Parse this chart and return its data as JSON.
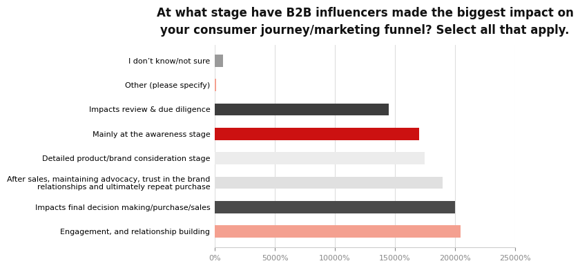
{
  "title": "At what stage have B2B influencers made the biggest impact on\nyour consumer journey/marketing funnel? Select all that apply.",
  "categories": [
    "Engagement, and relationship building",
    "Impacts final decision making/purchase/sales",
    "After sales, maintaining advocacy, trust in the brand\nrelationships and ultimately repeat purchase",
    "Detailed product/brand consideration stage",
    "Mainly at the awareness stage",
    "Impacts review & due diligence",
    "Other (please specify)",
    "I don’t know/not sure"
  ],
  "values": [
    20500,
    20000,
    19000,
    17500,
    17000,
    14500,
    100,
    700
  ],
  "colors": [
    "#f4a090",
    "#4a4a4a",
    "#e0e0e0",
    "#ececec",
    "#cc1111",
    "#3d3d3d",
    "#f4a090",
    "#9a9a9a"
  ],
  "xlim": [
    0,
    25000
  ],
  "xtick_values": [
    0,
    5000,
    10000,
    15000,
    20000,
    25000
  ],
  "background_color": "#ffffff",
  "title_fontsize": 12,
  "tick_label_fontsize": 8,
  "bar_height": 0.5
}
